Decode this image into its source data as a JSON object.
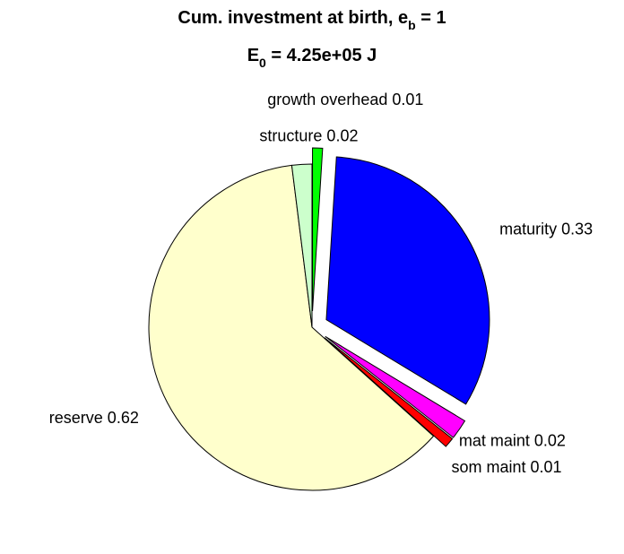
{
  "chart_data": {
    "type": "pie",
    "title_line1": {
      "prefix": "Cum. investment at birth, e",
      "sub": "b",
      "suffix": " = 1"
    },
    "title_line2": {
      "prefix": "E",
      "sub": "0",
      "suffix": " = 4.25e+05 J"
    },
    "slices": [
      {
        "label": "growth overhead 0.01",
        "value": 0.01,
        "color": "#00ff00",
        "exploded": true
      },
      {
        "label": "maturity 0.33",
        "value": 0.33,
        "color": "#0000ff",
        "exploded": true
      },
      {
        "label": "mat maint 0.02",
        "value": 0.02,
        "color": "#ff00ff",
        "exploded": true
      },
      {
        "label": "som maint 0.01",
        "value": 0.01,
        "color": "#ff0000",
        "exploded": true
      },
      {
        "label": "reserve 0.62",
        "value": 0.62,
        "color": "#ffffcc",
        "exploded": false
      },
      {
        "label": "structure 0.02",
        "value": 0.02,
        "color": "#ccffcc",
        "exploded": false
      }
    ],
    "start": "top",
    "direction": "clockwise"
  }
}
